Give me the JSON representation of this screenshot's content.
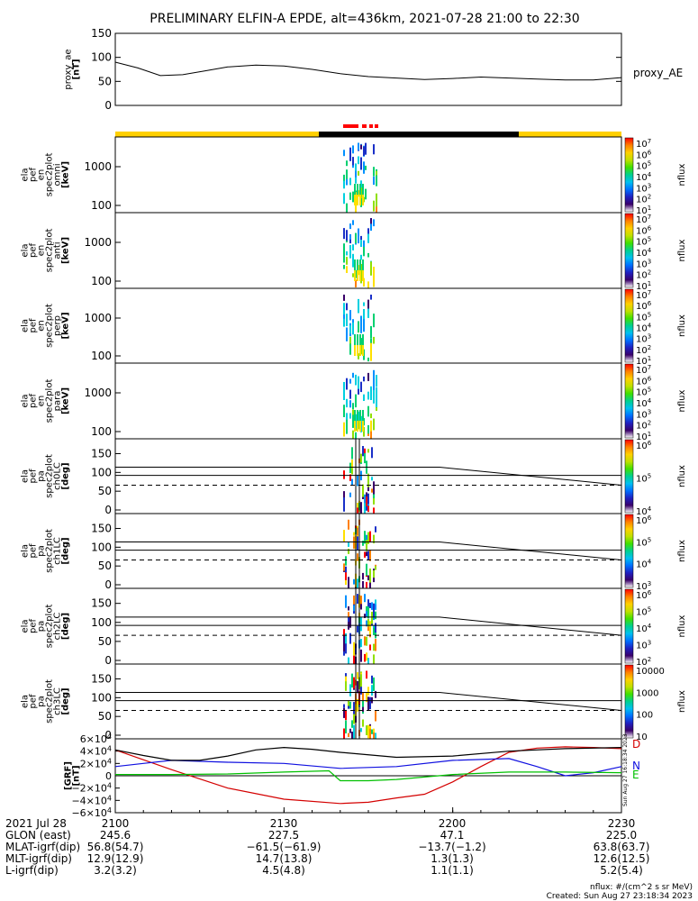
{
  "title": "PRELIMINARY ELFIN-A EPDE, alt=436km, 2021-07-28 21:00 to 22:30",
  "chart_data": [
    {
      "type": "line",
      "name": "proxy_ae",
      "ylabel": [
        "proxy_ae",
        "[nT]"
      ],
      "legend": "proxy_AE",
      "ylim": [
        0,
        150
      ],
      "yticks": [
        "150",
        "100",
        "50",
        "0"
      ],
      "x": [
        0,
        4,
        8,
        12,
        16,
        20,
        25,
        30,
        35,
        40,
        45,
        50,
        55,
        60,
        65,
        70,
        75,
        80,
        85,
        90
      ],
      "y": [
        90,
        78,
        62,
        64,
        72,
        80,
        84,
        82,
        75,
        66,
        60,
        57,
        54,
        56,
        59,
        57,
        55,
        53,
        53,
        58
      ],
      "xlim": [
        0,
        90
      ]
    },
    {
      "type": "heatmap",
      "name": "en-omni",
      "ylabel": [
        "ela",
        "pef",
        "en",
        "spec2plot",
        "omni",
        "[keV]"
      ],
      "yticks": [
        "1000",
        "100"
      ],
      "colorbar": {
        "label": "nflux",
        "ticks": [
          "10^7",
          "10^6",
          "10^5",
          "10^4",
          "10^3",
          "10^2",
          "10^1"
        ]
      }
    },
    {
      "type": "heatmap",
      "name": "en-anti",
      "ylabel": [
        "ela",
        "pef",
        "en",
        "spec2plot",
        "anti",
        "[keV]"
      ],
      "yticks": [
        "1000",
        "100"
      ],
      "colorbar": {
        "label": "nflux",
        "ticks": [
          "10^7",
          "10^6",
          "10^5",
          "10^4",
          "10^3",
          "10^2",
          "10^1"
        ]
      }
    },
    {
      "type": "heatmap",
      "name": "en-perp",
      "ylabel": [
        "ela",
        "pef",
        "en",
        "spec2plot",
        "perp",
        "[keV]"
      ],
      "yticks": [
        "1000",
        "100"
      ],
      "colorbar": {
        "label": "nflux",
        "ticks": [
          "10^7",
          "10^6",
          "10^5",
          "10^4",
          "10^3",
          "10^2",
          "10^1"
        ]
      }
    },
    {
      "type": "heatmap",
      "name": "en-para",
      "ylabel": [
        "ela",
        "pef",
        "en",
        "spec2plot",
        "para",
        "[keV]"
      ],
      "yticks": [
        "1000",
        "100"
      ],
      "colorbar": {
        "label": "nflux",
        "ticks": [
          "10^7",
          "10^6",
          "10^5",
          "10^4",
          "10^3",
          "10^2",
          "10^1"
        ]
      }
    },
    {
      "type": "heatmap",
      "name": "pa-ch0LC",
      "ylabel": [
        "ela",
        "pef",
        "pa",
        "spec2plot",
        "ch0LC",
        "[deg]"
      ],
      "yticks": [
        "150",
        "100",
        "50",
        "0"
      ],
      "colorbar": {
        "label": "nflux",
        "ticks": [
          "10^6",
          "10^5",
          "10^4"
        ]
      }
    },
    {
      "type": "heatmap",
      "name": "pa-ch1LC",
      "ylabel": [
        "ela",
        "pef",
        "pa",
        "spec2plot",
        "ch1LC",
        "[deg]"
      ],
      "yticks": [
        "150",
        "100",
        "50",
        "0"
      ],
      "colorbar": {
        "label": "nflux",
        "ticks": [
          "10^6",
          "10^5",
          "10^4",
          "10^3"
        ]
      }
    },
    {
      "type": "heatmap",
      "name": "pa-ch2LC",
      "ylabel": [
        "ela",
        "pef",
        "pa",
        "spec2plot",
        "ch2LC",
        "[deg]"
      ],
      "yticks": [
        "150",
        "100",
        "50",
        "0"
      ],
      "colorbar": {
        "label": "nflux",
        "ticks": [
          "10^6",
          "10^5",
          "10^4",
          "10^3",
          "10^2"
        ]
      }
    },
    {
      "type": "heatmap",
      "name": "pa-ch3LC",
      "ylabel": [
        "ela",
        "pef",
        "pa",
        "spec2plot",
        "ch3LC",
        "[deg]"
      ],
      "yticks": [
        "150",
        "100",
        "50",
        "0"
      ],
      "colorbar": {
        "label": "nflux",
        "ticks": [
          "10000",
          "1000",
          "100",
          "10"
        ]
      }
    },
    {
      "type": "line",
      "name": "b-field",
      "ylabel": [
        "[GRF]",
        "[nT]"
      ],
      "yticks": [
        "6×10^4",
        "4×10^4",
        "2×10^4",
        "0",
        "−2×10^4",
        "−4×10^4",
        "−6×10^4"
      ],
      "ylim": [
        -60000,
        60000
      ],
      "xlim": [
        0,
        90
      ],
      "series": [
        {
          "name": "D",
          "color": "#d40000",
          "x": [
            0,
            10,
            20,
            30,
            40,
            45,
            50,
            55,
            60,
            65,
            70,
            75,
            80,
            85,
            90
          ],
          "y": [
            42000,
            10000,
            -20000,
            -38000,
            -45000,
            -43000,
            -36000,
            -30000,
            -10000,
            15000,
            38000,
            45000,
            47000,
            46000,
            44000
          ]
        },
        {
          "name": "N",
          "color": "#1010e0",
          "x": [
            0,
            5,
            10,
            20,
            30,
            40,
            50,
            60,
            70,
            75,
            80,
            85,
            90
          ],
          "y": [
            15000,
            20000,
            25000,
            22000,
            20000,
            12000,
            15000,
            25000,
            28000,
            15000,
            0,
            5000,
            15000
          ]
        },
        {
          "name": "E",
          "color": "#00c000",
          "x": [
            0,
            10,
            20,
            30,
            38,
            40,
            45,
            50,
            60,
            70,
            80,
            90
          ],
          "y": [
            2000,
            2000,
            3000,
            6000,
            8000,
            -8000,
            -8000,
            -6000,
            2000,
            6000,
            6000,
            5000
          ]
        },
        {
          "name": "",
          "color": "#000000",
          "x": [
            0,
            5,
            10,
            15,
            20,
            25,
            30,
            35,
            40,
            50,
            60,
            70,
            80,
            90
          ],
          "y": [
            42000,
            33000,
            25000,
            25000,
            32000,
            42000,
            46000,
            43000,
            38000,
            30000,
            32000,
            40000,
            44000,
            46000
          ]
        }
      ],
      "side_label": "Sun Aug 27 16:18:34 2023"
    }
  ],
  "time_axis": {
    "rows": [
      {
        "label": "2021 Jul 28",
        "values": [
          "2100",
          "2130",
          "2200",
          "2230"
        ]
      },
      {
        "label": "GLON (east)",
        "values": [
          "245.6",
          "227.5",
          "47.1",
          "225.0"
        ]
      },
      {
        "label": "MLAT-igrf(dip)",
        "values": [
          "56.8(54.7)",
          "−61.5(−61.9)",
          "−13.7(−1.2)",
          "63.8(63.7)"
        ]
      },
      {
        "label": "MLT-igrf(dip)",
        "values": [
          "12.9(12.9)",
          "14.7(13.8)",
          "1.3(1.3)",
          "12.6(12.5)"
        ]
      },
      {
        "label": "L-igrf(dip)",
        "values": [
          "3.2(3.2)",
          "4.5(4.8)",
          "1.1(1.1)",
          "5.2(5.4)"
        ]
      }
    ]
  },
  "footer": {
    "units": "nflux: #/(cm^2 s sr MeV)",
    "created": "Created: Sun Aug 27 23:18:34 2023"
  }
}
